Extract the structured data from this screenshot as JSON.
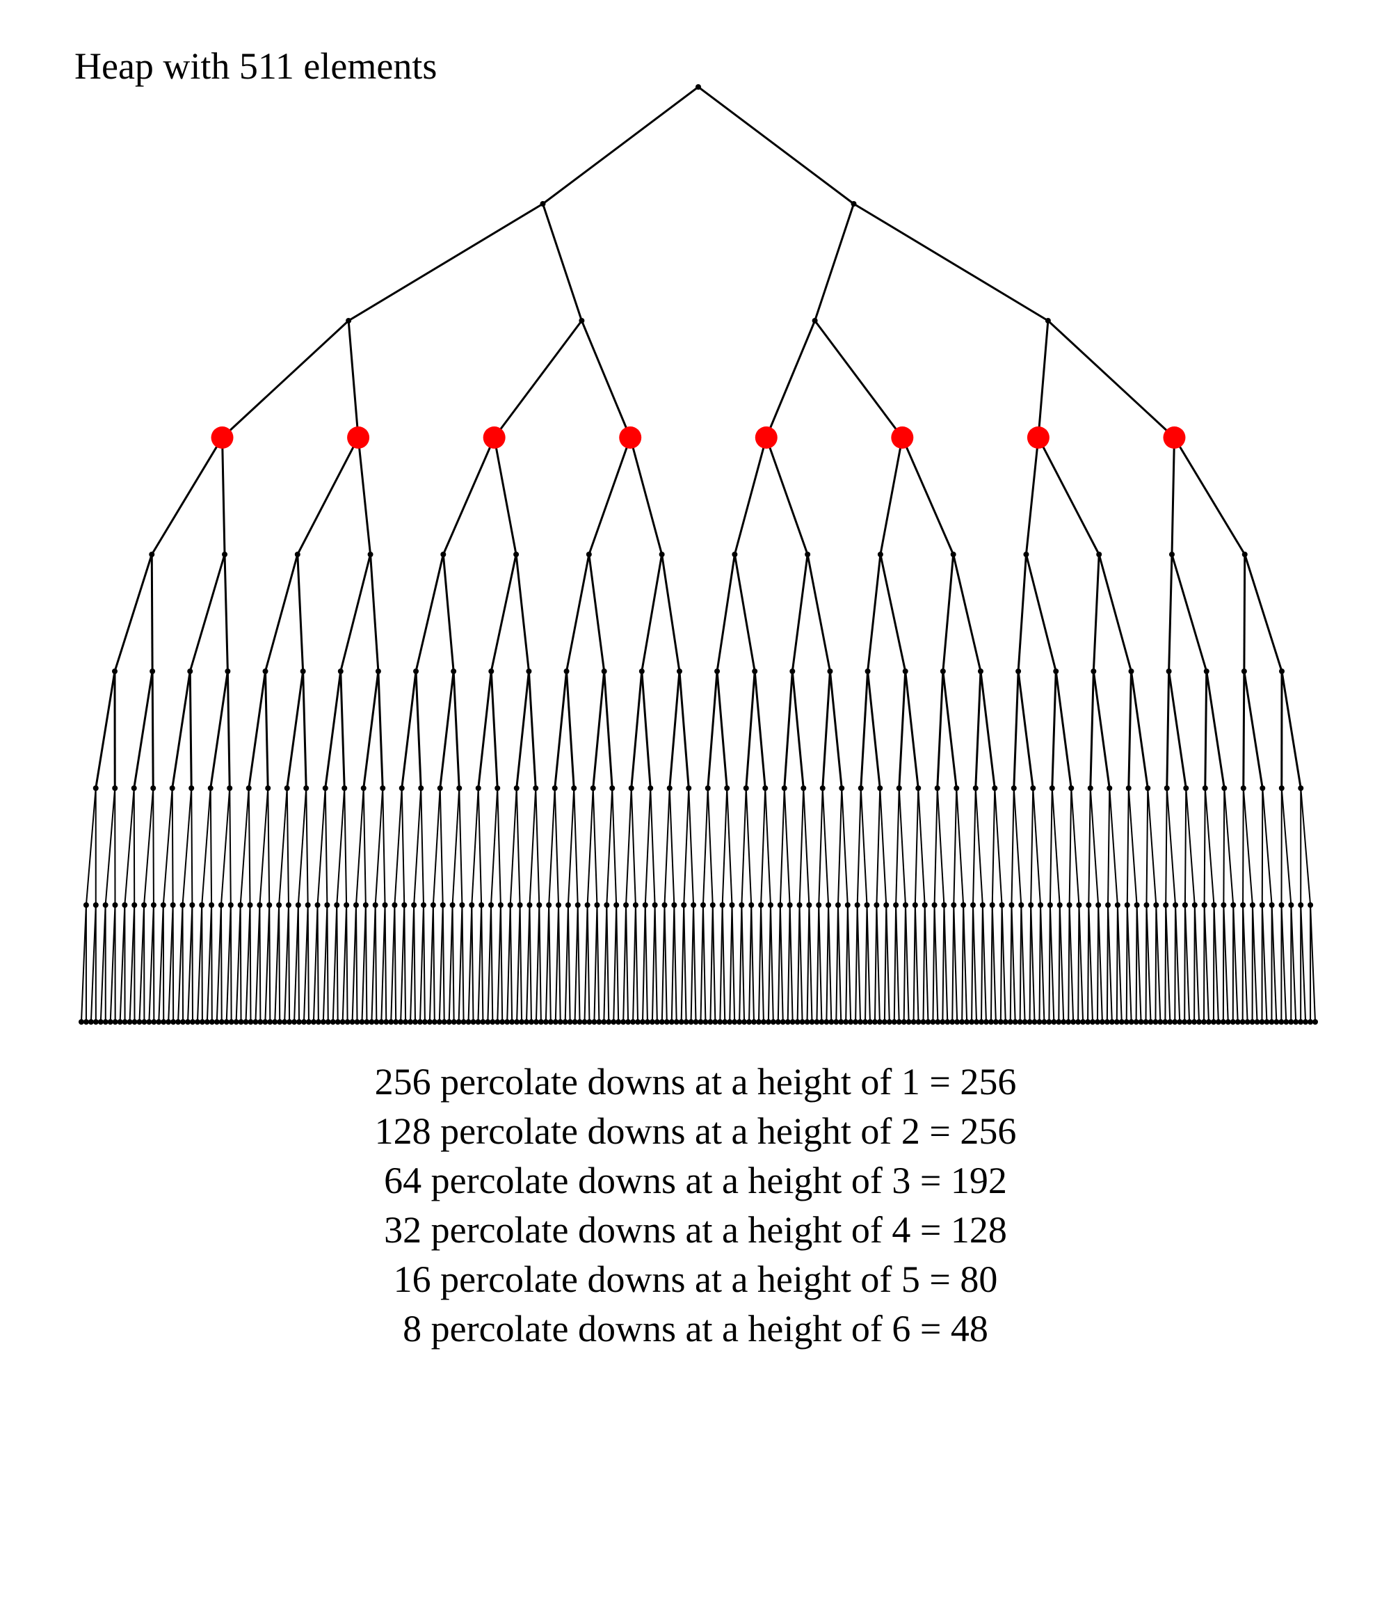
{
  "title": "Heap with 511 elements",
  "tree": {
    "levels": 9,
    "element_count": 511,
    "highlighted_level": 3,
    "highlight_color": "#ff0000",
    "edge_color": "#000000",
    "node_color": "#000000"
  },
  "summary_lines": [
    "256 percolate downs at a height of 1 = 256",
    "128 percolate downs at a height of 2 = 256",
    "64 percolate downs at a height of 3 = 192",
    "32 percolate downs at a height of 4 = 128",
    "16 percolate downs at a height of 5 = 80",
    "8 percolate downs at a height of 6 = 48"
  ]
}
